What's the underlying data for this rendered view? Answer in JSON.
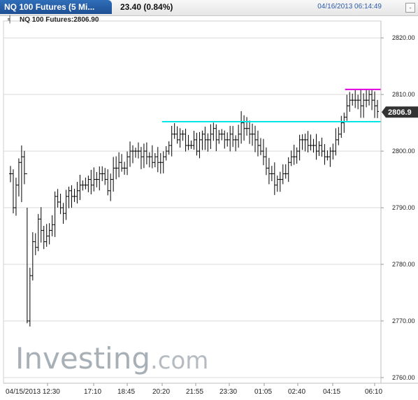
{
  "header": {
    "tab_title": "NQ 100 Futures (5 Mi...",
    "change": "23.40 (0.84%)",
    "datetime": "04/16/2013 06:14:49",
    "toggle_symbol": "-"
  },
  "legend": {
    "label": "NQ 100 Futures:2806.90"
  },
  "watermark": {
    "main": "Investing",
    "suffix": ".com"
  },
  "colors": {
    "support_line": "#00e5e5",
    "resistance_line": "#e000e0",
    "price_bars": "#000000",
    "price_tag_bg": "#333333",
    "grid": "#d9d9d9"
  },
  "chart_data": {
    "type": "ohlc",
    "title": "NQ 100 Futures (5 Min)",
    "last_price": "2806.9",
    "x_tick_labels": [
      "04/15/2013 12:30",
      "17:10",
      "18:45",
      "20:20",
      "21:55",
      "23:30",
      "01:05",
      "02:40",
      "04:15",
      "06:10"
    ],
    "y_ticks": [
      2760,
      2770,
      2780,
      2790,
      2800,
      2810,
      2820
    ],
    "y_tick_labels": [
      "2760.00",
      "2770.00",
      "2780.00",
      "2790.00",
      "2800.00",
      "2810.00",
      "2820.00"
    ],
    "ylim": [
      2759,
      2822
    ],
    "grid": true,
    "price_series": [
      2796,
      2790,
      2794,
      2798,
      2799,
      2796,
      2770,
      2778,
      2784,
      2783,
      2788,
      2786,
      2784,
      2785,
      2786,
      2787,
      2792,
      2791,
      2790,
      2789,
      2792,
      2793,
      2792,
      2792,
      2793,
      2794,
      2794,
      2794,
      2795,
      2794,
      2795,
      2795,
      2796,
      2796,
      2795,
      2793,
      2795,
      2797,
      2797,
      2798,
      2797,
      2797,
      2799,
      2800,
      2800,
      2800,
      2800,
      2799,
      2800,
      2799,
      2799,
      2798,
      2799,
      2798,
      2798,
      2799,
      2800,
      2801,
      2803,
      2803,
      2802,
      2803,
      2803,
      2801,
      2801,
      2801,
      2802,
      2800,
      2802,
      2803,
      2802,
      2802,
      2803,
      2804,
      2802,
      2803,
      2803,
      2802,
      2802,
      2803,
      2802,
      2802,
      2803,
      2805,
      2804,
      2804,
      2803,
      2803,
      2802,
      2801,
      2800,
      2799,
      2797,
      2796,
      2796,
      2794,
      2795,
      2795,
      2796,
      2796,
      2798,
      2799,
      2799,
      2800,
      2802,
      2802,
      2802,
      2801,
      2801,
      2801,
      2800,
      2801,
      2800,
      2799,
      2799,
      2800,
      2800,
      2802,
      2803,
      2805,
      2806,
      2808,
      2809,
      2809,
      2809,
      2809,
      2808,
      2809,
      2809,
      2810,
      2809,
      2808,
      2807
    ],
    "horizontal_lines": [
      {
        "name": "support",
        "value": 2805.2,
        "x_start_frac": 0.42,
        "x_end_frac": 1.0,
        "color": "#00e5e5"
      },
      {
        "name": "resistance",
        "value": 2810.9,
        "x_start_frac": 0.905,
        "x_end_frac": 1.0,
        "color": "#e000e0"
      }
    ]
  }
}
